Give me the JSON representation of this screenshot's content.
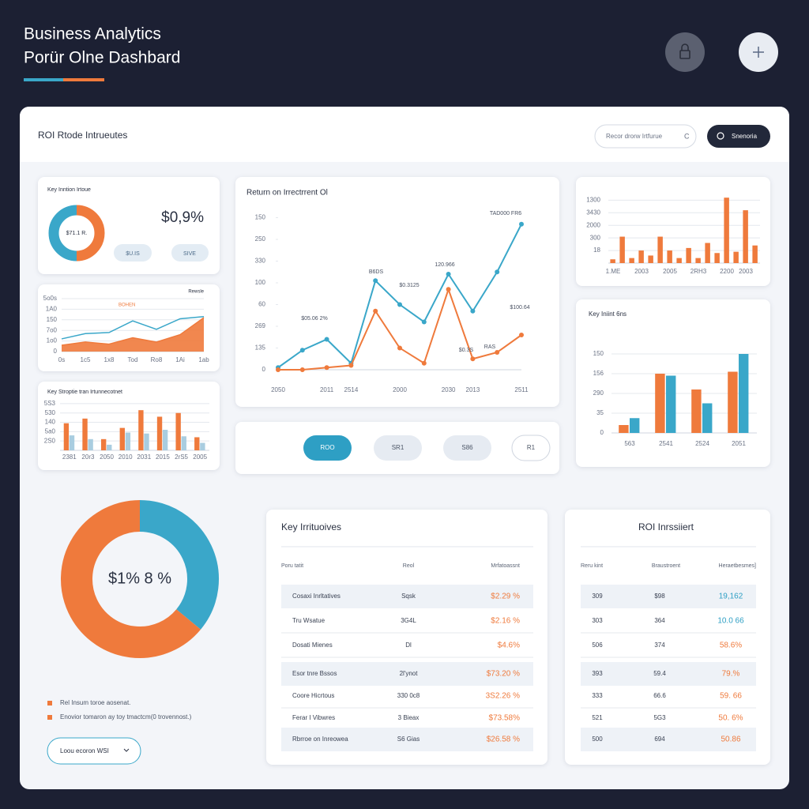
{
  "header": {
    "title": "Business Analytics",
    "subtitle": "Porür Olne Dashbard"
  },
  "panel": {
    "title": "ROI Rtode Intrueutes",
    "search_placeholder": "Recor drorw Irtfurue",
    "search_button": "Snenoria"
  },
  "kpi_card": {
    "title": "Key Inntion Irtoue",
    "value": "$0,9%",
    "buttons": [
      "$U.IS",
      "SIVE"
    ]
  },
  "tabs": [
    "ROO",
    "SR1",
    "S86",
    "R1"
  ],
  "legend": [
    "Rel Insum toroe aosenat.",
    "Enovior tomaron ay toy tmactcm(0 trovennost.)"
  ],
  "dropdown": "Loou ecoron WSI",
  "charts": [
    {
      "type": "line",
      "title": "Rewsle",
      "subtitle": "BOHEN",
      "categories": [
        "0s",
        "1c5",
        "1x8",
        "Tod",
        "Ro8",
        "1Ai",
        "1ab"
      ],
      "series": [
        {
          "name": "Rewsle",
          "color": "#3aa7c9",
          "values": [
            1.2,
            1.7,
            1.8,
            2.9,
            2.1,
            3.1,
            3.3
          ]
        },
        {
          "name": "BOHEN",
          "color": "#ef7a3c",
          "area": true,
          "values": [
            0.6,
            0.9,
            0.7,
            1.3,
            0.9,
            1.6,
            3.2
          ]
        }
      ],
      "ylim": [
        0,
        5
      ],
      "yticks": [
        0,
        {
          "value": 1,
          "label": "1o0"
        },
        {
          "value": 2,
          "label": "7o0"
        },
        {
          "value": 3,
          "label": "150"
        },
        {
          "value": 4,
          "label": "1A0"
        },
        {
          "value": 5,
          "label": "5o0s"
        }
      ],
      "grid": true
    },
    {
      "type": "bar",
      "title": "Key Stroptie tran Irtunnecotnet",
      "categories": [
        "2381",
        "20r3",
        "2050",
        "2010",
        "2031",
        "2015",
        "2rS5",
        "2005"
      ],
      "series": [
        {
          "name": "A",
          "color": "#ef7a3c",
          "values": [
            2.9,
            3.4,
            1.2,
            2.4,
            4.3,
            3.6,
            4.0,
            1.4
          ]
        },
        {
          "name": "B",
          "color": "#a9cde0",
          "values": [
            1.6,
            1.2,
            0.6,
            1.9,
            1.8,
            2.2,
            1.5,
            0.8
          ]
        }
      ],
      "ylim": [
        0,
        5.5
      ],
      "yticks": [
        {
          "value": 1,
          "label": "2S0"
        },
        {
          "value": 2,
          "label": "5a0"
        },
        {
          "value": 3,
          "label": "140"
        },
        {
          "value": 4,
          "label": "530"
        },
        {
          "value": 5,
          "label": "5S3"
        }
      ],
      "grid": true
    },
    {
      "type": "line",
      "title": "Return on Irrectrrent Ol",
      "markers": true,
      "categories": [
        "2050",
        null,
        "2011",
        "2514",
        null,
        "2000",
        null,
        "2030",
        "2013",
        null,
        "2511"
      ],
      "series": [
        {
          "name": "ROI",
          "color": "#3aa7c9",
          "values": [
            0.1,
            0.9,
            1.4,
            0.3,
            4.1,
            3.0,
            2.2,
            4.4,
            2.7,
            4.5,
            6.7
          ]
        },
        {
          "name": "RAS",
          "color": "#ef7a3c",
          "values": [
            0,
            0,
            0.1,
            0.2,
            2.7,
            1.0,
            0.3,
            3.7,
            0.5,
            0.8,
            1.6
          ]
        }
      ],
      "ylim": [
        0,
        7.2
      ],
      "yticks": [
        0,
        {
          "value": 1,
          "label": "135"
        },
        {
          "value": 2,
          "label": "269"
        },
        {
          "value": 3,
          "label": "60"
        },
        {
          "value": 4,
          "label": "100"
        },
        {
          "value": 5,
          "label": "330"
        },
        {
          "value": 6,
          "label": "250"
        },
        {
          "value": 7,
          "label": "150"
        }
      ],
      "annotations": [
        "TAD000 FR6",
        "120.966",
        "B6DS",
        "$0.3125",
        "$05.06 2%",
        "$100.64",
        "RAS",
        "$0.3S"
      ],
      "grid": false
    },
    {
      "type": "bar",
      "categories": [
        "1.ME",
        null,
        null,
        "2003",
        null,
        null,
        "2005",
        null,
        null,
        "2RH3",
        null,
        null,
        "2200",
        null,
        "2003",
        null
      ],
      "series": [
        {
          "name": "A",
          "color": "#ef7a3c",
          "values": [
            0.3,
            2.1,
            0.4,
            1.0,
            0.6,
            2.1,
            1.0,
            0.4,
            1.2,
            0.4,
            1.6,
            0.8,
            5.2,
            0.9,
            4.2,
            1.4
          ]
        }
      ],
      "ylim": [
        0,
        5.4
      ],
      "yticks": [
        {
          "value": 1,
          "label": "18"
        },
        {
          "value": 2,
          "label": "300"
        },
        {
          "value": 3,
          "label": "2000"
        },
        {
          "value": 4,
          "label": "3430"
        },
        {
          "value": 5,
          "label": "1300"
        }
      ],
      "grid": true
    },
    {
      "type": "bar",
      "title": "Key Iniint 6ns",
      "categories": [
        "563",
        "2541",
        "2524",
        "2051"
      ],
      "series": [
        {
          "name": "A",
          "color": "#ef7a3c",
          "values": [
            0.4,
            3.0,
            2.2,
            3.1
          ]
        },
        {
          "name": "B",
          "color": "#3aa7c9",
          "values": [
            0.75,
            2.9,
            1.5,
            4.0
          ]
        }
      ],
      "ylim": [
        0,
        4.4
      ],
      "yticks": [
        0,
        {
          "value": 1,
          "label": "35"
        },
        {
          "value": 2,
          "label": "290"
        },
        {
          "value": 3,
          "label": "156"
        },
        {
          "value": 4,
          "label": "150"
        }
      ],
      "grid": true
    },
    {
      "type": "pie",
      "center_label": "$71.1 R.",
      "values": [
        50,
        50
      ],
      "colors": [
        "#3aa7c9",
        "#ef7a3c"
      ]
    },
    {
      "type": "pie",
      "center_label": "$1% 8 %",
      "values": [
        36,
        64
      ],
      "colors": [
        "#3aa7c9",
        "#ef7a3c"
      ]
    }
  ],
  "tables": [
    {
      "title": "Key Irrituoives",
      "columns": [
        "Poru tatit",
        "Reol",
        "Mrfatoassnt"
      ],
      "rows": [
        [
          "Cosaxi Inrltatives",
          "Sqsk",
          "$2.29 %"
        ],
        [
          "Tru Wsatue",
          "3G4L",
          "$2.16 %"
        ],
        [
          "Dosati Mienes",
          "Dl",
          "$4.6%"
        ],
        [
          "Esor tnre Bssos",
          "2l'ynot",
          "$73.20 %"
        ],
        [
          "Coore Hicrtous",
          "330 0c8",
          "3S2.26 %"
        ],
        [
          "Ferar I Vibwres",
          "3 Bieax",
          "$73.58%"
        ],
        [
          "Rbrroe on Inreowea",
          "S6 Gias",
          "$26.58 %"
        ]
      ]
    },
    {
      "title": "ROI Inrssiiert",
      "columns": [
        "Reru kint",
        "Braustroent",
        "Heraetbesmes]"
      ],
      "rows": [
        [
          "309",
          "$98",
          "19,162"
        ],
        [
          "303",
          "364",
          "10.0 66"
        ],
        [
          "506",
          "374",
          "58.6%"
        ],
        [
          "393",
          "59.4",
          "79.%"
        ],
        [
          "333",
          "66.6",
          "59. 66"
        ],
        [
          "521",
          "5G3",
          "50. 6%"
        ],
        [
          "500",
          "694",
          "50.86"
        ]
      ]
    }
  ]
}
